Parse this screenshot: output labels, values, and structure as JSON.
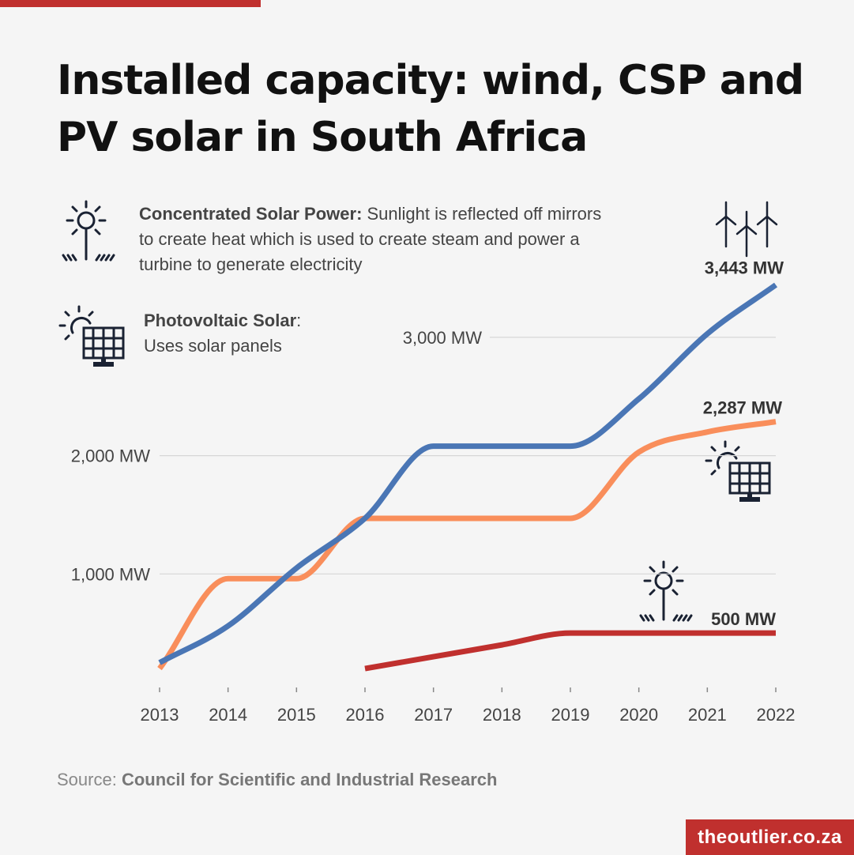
{
  "title": "Installed capacity: wind, CSP and PV solar in South Africa",
  "legend": {
    "csp_name": "Concentrated Solar Power:",
    "csp_desc": " Sunlight is reflected off mirrors to create heat which is used to create steam and power a turbine to generate electricity",
    "pv_name": "Photovoltaic Solar",
    "pv_colon": ":",
    "pv_desc": "Uses solar panels"
  },
  "source": {
    "prefix": "Source: ",
    "name": "Council for Scientific and Industrial Research"
  },
  "brand": "theoutlier.co.za",
  "colors": {
    "wind": "#4a76b5",
    "pv": "#f98e5b",
    "csp": "#c0302e",
    "accent": "#c0302e",
    "grid": "#d6d6d6"
  },
  "icons": {
    "csp": "sun-mirror-icon",
    "pv": "solar-panel-icon",
    "wind": "wind-turbine-icon"
  },
  "chart_data": {
    "type": "line",
    "x": [
      "2013",
      "2014",
      "2015",
      "2016",
      "2017",
      "2018",
      "2019",
      "2020",
      "2021",
      "2022"
    ],
    "ylim": [
      0,
      3700
    ],
    "yticks": [
      {
        "value": 1000,
        "label": "1,000 MW"
      },
      {
        "value": 2000,
        "label": "2,000 MW"
      },
      {
        "value": 3000,
        "label": "3,000 MW"
      }
    ],
    "series": [
      {
        "key": "wind",
        "values": [
          250,
          560,
          1050,
          1470,
          2080,
          2080,
          2080,
          2480,
          3030,
          3443
        ],
        "end_label": "3,443 MW"
      },
      {
        "key": "pv",
        "values": [
          200,
          960,
          960,
          1470,
          1470,
          1470,
          1470,
          2030,
          2200,
          2287
        ],
        "end_label": "2,287 MW"
      },
      {
        "key": "csp",
        "values": [
          null,
          null,
          null,
          200,
          300,
          400,
          500,
          500,
          500,
          500
        ],
        "end_label": "500 MW"
      }
    ]
  }
}
